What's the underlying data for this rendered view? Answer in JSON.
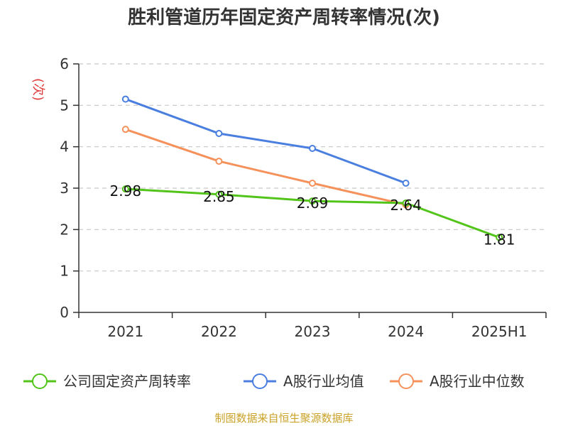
{
  "chart_data": {
    "type": "line",
    "title": "胜利管道历年固定资产周转率情况(次)",
    "ylabel": "(次)",
    "xlabel": "",
    "categories": [
      "2021",
      "2022",
      "2023",
      "2024",
      "2025H1"
    ],
    "ylim": [
      0,
      6
    ],
    "yticks": [
      "0",
      "1",
      "2",
      "3",
      "4",
      "5",
      "6"
    ],
    "grid": true,
    "legend_position": "bottom",
    "series": [
      {
        "name": "公司固定资产周转率",
        "color": "#52c41a",
        "values": [
          2.98,
          2.85,
          2.69,
          2.64,
          1.81
        ],
        "labels": [
          "2.98",
          "2.85",
          "2.69",
          "2.64",
          "1.81"
        ]
      },
      {
        "name": "A股行业均值",
        "color": "#4a7fe0",
        "values": [
          5.15,
          4.32,
          3.96,
          3.12,
          null
        ],
        "labels": []
      },
      {
        "name": "A股行业中位数",
        "color": "#f5915b",
        "values": [
          4.42,
          3.65,
          3.12,
          2.6,
          null
        ],
        "labels": []
      }
    ]
  },
  "footer": {
    "source": "制图数据来自恒生聚源数据库"
  }
}
